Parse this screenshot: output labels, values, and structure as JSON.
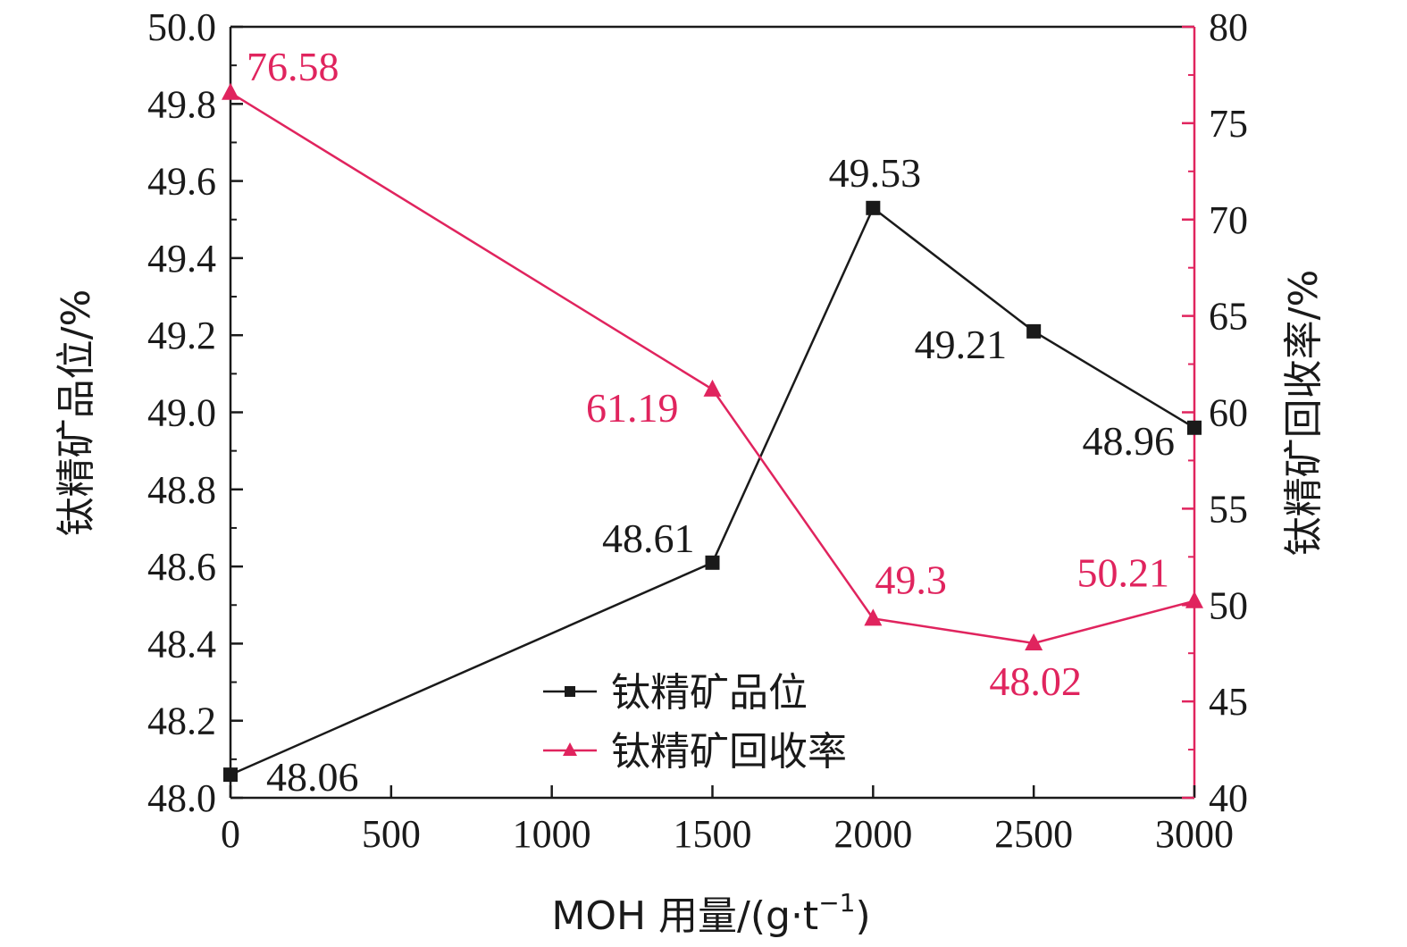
{
  "chart_data": {
    "type": "line",
    "x": [
      0,
      1500,
      2000,
      2500,
      3000
    ],
    "xlim": [
      0,
      3000
    ],
    "x_ticks": [
      "0",
      "500",
      "1000",
      "1500",
      "2000",
      "2500",
      "3000"
    ],
    "xlabel": "MOH 用量/(g·t",
    "xlabel_sup": "−1",
    "xlabel_tail": ")",
    "ylabel_left": "钛精矿品位/%",
    "ylim_left": [
      48.0,
      50.0
    ],
    "y_ticks_left": [
      "48.0",
      "48.2",
      "48.4",
      "48.6",
      "48.8",
      "49.0",
      "49.2",
      "49.4",
      "49.6",
      "49.8",
      "50.0"
    ],
    "ylabel_right": "钛精矿回收率/%",
    "ylim_right": [
      40,
      80
    ],
    "y_ticks_right": [
      "40",
      "45",
      "50",
      "55",
      "60",
      "65",
      "70",
      "75",
      "80"
    ],
    "grid": false,
    "legend_position": "bottom-center",
    "series": [
      {
        "name": "钛精矿品位",
        "axis": "left",
        "marker": "square",
        "color": "#1a1a1a",
        "values": [
          48.06,
          48.61,
          49.53,
          49.21,
          48.96
        ],
        "labels": [
          "48.06",
          "48.61",
          "49.53",
          "49.21",
          "48.96"
        ]
      },
      {
        "name": "钛精矿回收率",
        "axis": "right",
        "marker": "triangle",
        "color": "#e0245e",
        "values": [
          76.58,
          61.19,
          49.3,
          48.02,
          50.21
        ],
        "labels": [
          "76.58",
          "61.19",
          "49.3",
          "48.02",
          "50.21"
        ]
      }
    ]
  }
}
